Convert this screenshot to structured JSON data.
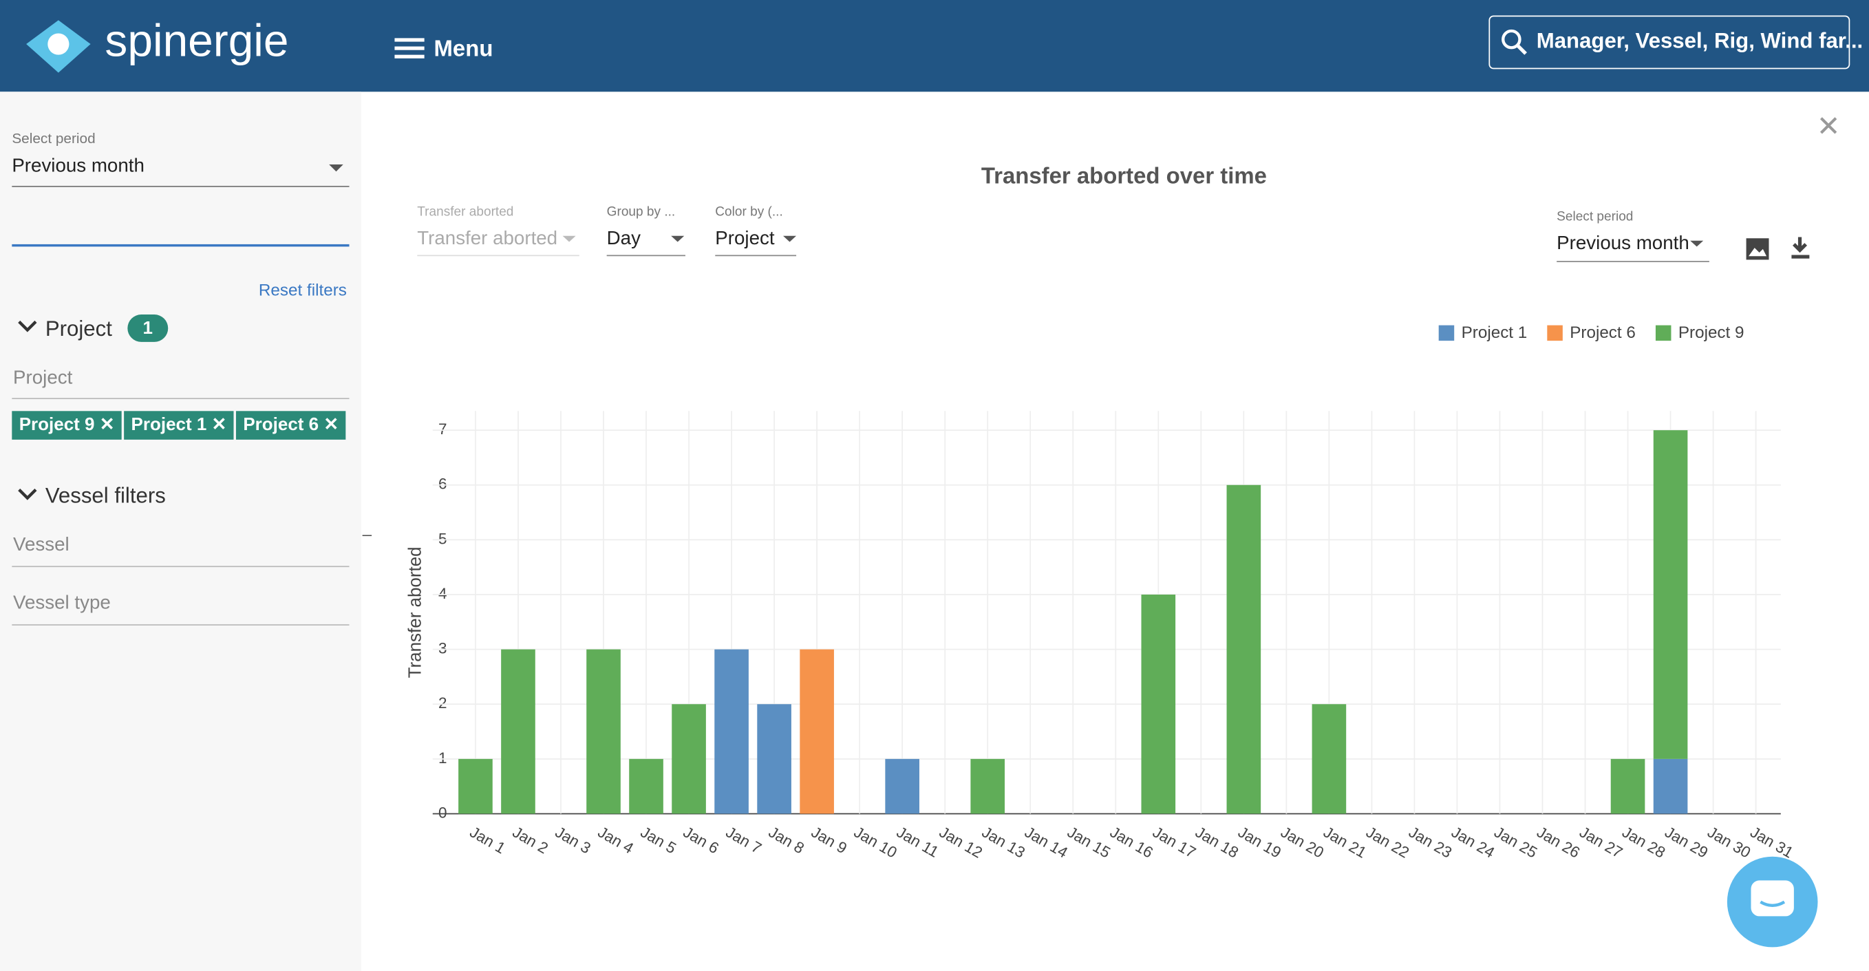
{
  "header": {
    "logo": "spinergie",
    "menu": "Menu",
    "search": "Manager, Vessel, Rig, Wind far..."
  },
  "sidebar": {
    "period_label": "Select period",
    "period_value": "Previous month",
    "reset": "Reset filters",
    "project_section": "Project",
    "project_count": "1",
    "project_placeholder": "Project",
    "chips": [
      "Project 9",
      "Project 1",
      "Project 6"
    ],
    "vessel_section": "Vessel filters",
    "vessel_placeholder": "Vessel",
    "vessel_type_placeholder": "Vessel type"
  },
  "controls": [
    {
      "label": "Transfer aborted",
      "value": "Transfer aborted"
    },
    {
      "label": "Group by ...",
      "value": "Day"
    },
    {
      "label": "Color by (...",
      "value": "Project"
    },
    {
      "label": "Select period",
      "value": "Previous month"
    }
  ],
  "chart_data": {
    "type": "bar",
    "stacked": true,
    "title": "Transfer aborted over time",
    "y_label": "Transfer aborted",
    "categories": [
      "Jan 1",
      "Jan 2",
      "Jan 3",
      "Jan 4",
      "Jan 5",
      "Jan 6",
      "Jan 7",
      "Jan 8",
      "Jan 9",
      "Jan 10",
      "Jan 11",
      "Jan 12",
      "Jan 13",
      "Jan 14",
      "Jan 15",
      "Jan 16",
      "Jan 17",
      "Jan 18",
      "Jan 19",
      "Jan 20",
      "Jan 21",
      "Jan 22",
      "Jan 23",
      "Jan 24",
      "Jan 25",
      "Jan 26",
      "Jan 27",
      "Jan 28",
      "Jan 29",
      "Jan 30",
      "Jan 31"
    ],
    "series": [
      {
        "name": "Project 1",
        "color": "#5b8fc2",
        "values": [
          null,
          null,
          null,
          null,
          null,
          null,
          3,
          2,
          null,
          null,
          1,
          null,
          null,
          null,
          null,
          null,
          null,
          null,
          null,
          null,
          null,
          null,
          null,
          null,
          null,
          null,
          null,
          null,
          1,
          null,
          null
        ]
      },
      {
        "name": "Project 6",
        "color": "#f6934b",
        "values": [
          null,
          null,
          null,
          null,
          null,
          null,
          null,
          null,
          3,
          null,
          null,
          null,
          null,
          null,
          null,
          null,
          null,
          null,
          null,
          null,
          null,
          null,
          null,
          null,
          null,
          null,
          null,
          null,
          null,
          null,
          null
        ]
      },
      {
        "name": "Project 9",
        "color": "#60ad58",
        "values": [
          1,
          3,
          null,
          3,
          1,
          2,
          null,
          null,
          null,
          null,
          null,
          null,
          1,
          null,
          null,
          null,
          4,
          null,
          6,
          null,
          2,
          null,
          null,
          null,
          null,
          null,
          null,
          1,
          6,
          null,
          null
        ]
      }
    ],
    "ylim": [
      0,
      7.35
    ],
    "yticks": [
      0,
      1,
      2,
      3,
      4,
      5,
      6,
      7
    ],
    "grid": true,
    "legend": "top-right"
  }
}
